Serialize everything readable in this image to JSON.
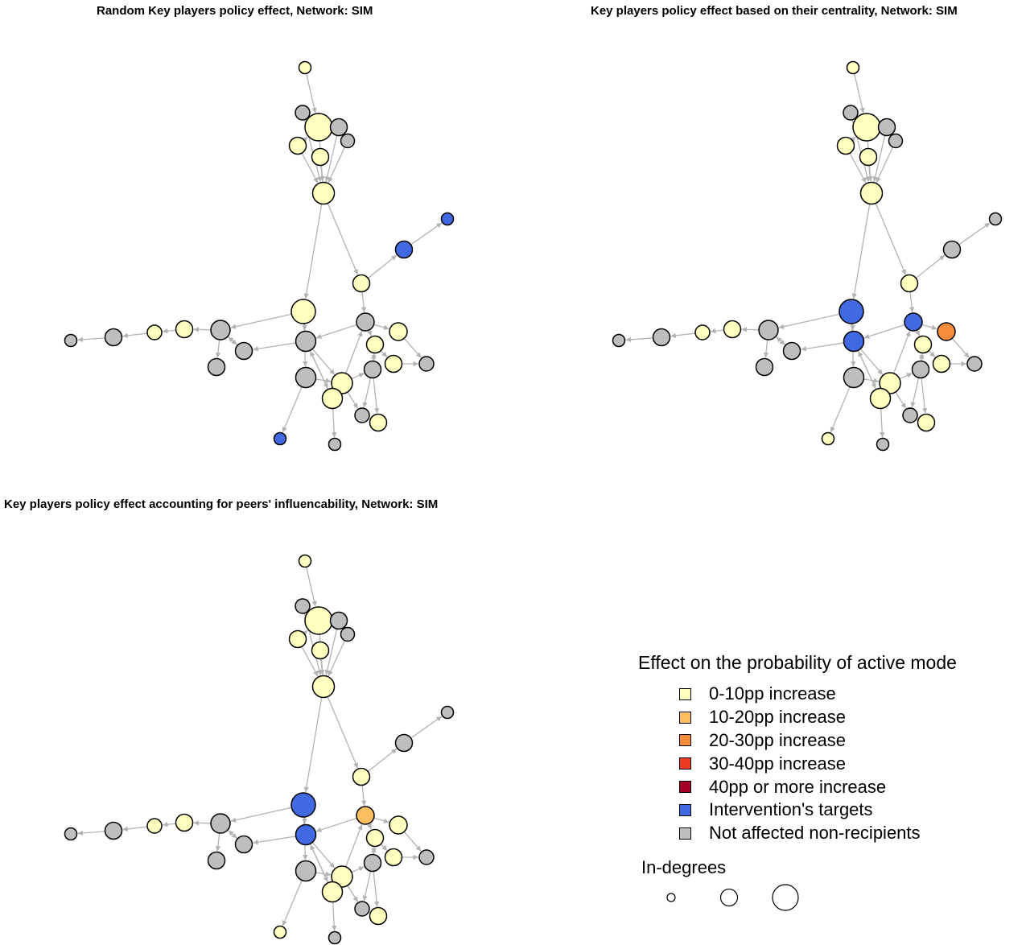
{
  "panels": [
    {
      "title": "Random Key players policy effect, Network: SIM",
      "nodes": [
        "yellow",
        "gray",
        "yellow",
        "gray",
        "yellow",
        "yellow",
        "gray",
        "yellow",
        "blue",
        "blue",
        "yellow",
        "yellow",
        "gray",
        "gray",
        "gray",
        "yellow",
        "yellow",
        "yellow",
        "yellow",
        "gray",
        "gray",
        "gray",
        "yellow",
        "gray",
        "yellow",
        "yellow",
        "yellow",
        "gray",
        "gray",
        "gray",
        "gray",
        "yellow",
        "gray",
        "gray",
        "blue"
      ]
    },
    {
      "title": "Key players policy effect based on their centrality, Network: SIM",
      "nodes": [
        "yellow",
        "gray",
        "yellow",
        "gray",
        "yellow",
        "yellow",
        "gray",
        "yellow",
        "gray",
        "gray",
        "yellow",
        "blue",
        "blue",
        "blue",
        "gray",
        "yellow",
        "yellow",
        "yellow",
        "yellow",
        "gray",
        "gray",
        "gray",
        "yellow",
        "gray",
        "yellow",
        "yellow",
        "orange",
        "gray",
        "gray",
        "gray",
        "gray",
        "yellow",
        "gray",
        "gray",
        "yellow"
      ]
    },
    {
      "title": "Key players policy effect accounting for peers' influencability, Network: SIM",
      "nodes": [
        "yellow",
        "gray",
        "yellow",
        "gray",
        "yellow",
        "yellow",
        "gray",
        "yellow",
        "gray",
        "gray",
        "yellow",
        "blue",
        "blue",
        "light-orange",
        "gray",
        "yellow",
        "yellow",
        "yellow",
        "yellow",
        "gray",
        "gray",
        "gray",
        "yellow",
        "gray",
        "yellow",
        "yellow",
        "yellow",
        "gray",
        "gray",
        "gray",
        "gray",
        "yellow",
        "gray",
        "blue",
        "yellow"
      ]
    }
  ],
  "colors": {
    "yellow": "#FFFFBF",
    "light-orange": "#FDBF5F",
    "orange": "#F98C3A",
    "red": "#EE3B22",
    "dark-red": "#A50026",
    "blue": "#4169E1",
    "gray": "#BEBEBE",
    "edge": "#B3B3B3"
  },
  "legend": {
    "title": "Effect on the probability of active mode",
    "items": [
      {
        "label": "0-10pp increase",
        "color": "#FFFFBF"
      },
      {
        "label": "10-20pp increase",
        "color": "#FDBF5F"
      },
      {
        "label": "20-30pp increase",
        "color": "#F98C3A"
      },
      {
        "label": "30-40pp increase",
        "color": "#EE3B22"
      },
      {
        "label": "40pp or more increase",
        "color": "#A50026"
      },
      {
        "label": "Intervention's targets",
        "color": "#4169E1"
      },
      {
        "label": "Not affected non-recipients",
        "color": "#BEBEBE"
      }
    ],
    "size_title": "In-degrees"
  }
}
